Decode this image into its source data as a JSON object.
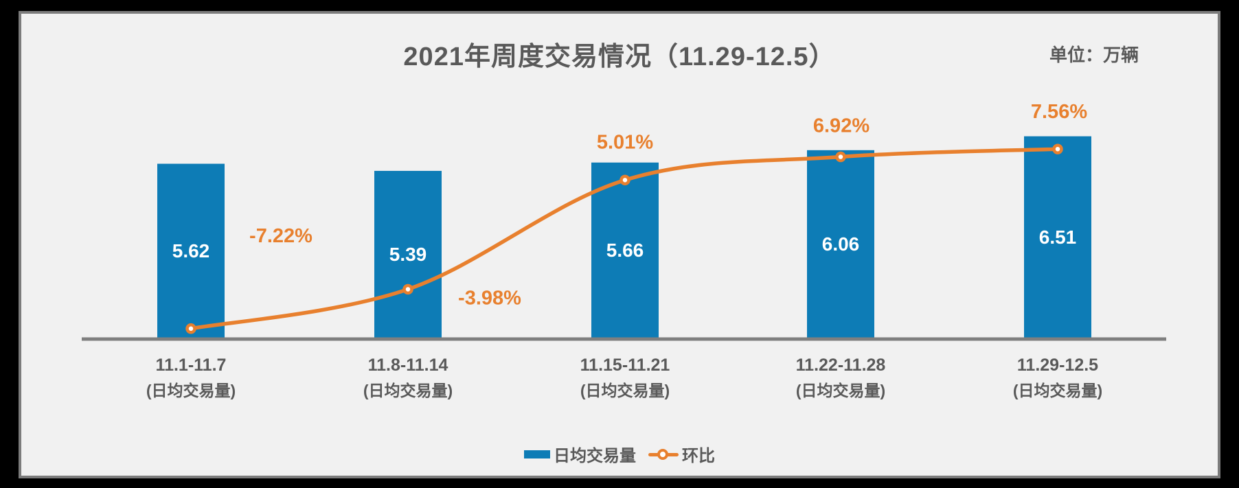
{
  "header": {
    "title": "2021年周度交易情况（11.29-12.5）",
    "unit_label": "单位：万辆"
  },
  "chart_data": {
    "type": "bar+line",
    "title": "2021年周度交易情况（11.29-12.5）",
    "unit": "万辆",
    "categories": [
      "11.1-11.7",
      "11.8-11.14",
      "11.15-11.21",
      "11.22-11.28",
      "11.29-12.5"
    ],
    "category_sublabel": "(日均交易量)",
    "series": [
      {
        "name": "日均交易量",
        "type": "bar",
        "values": [
          5.62,
          5.39,
          5.66,
          6.06,
          6.51
        ],
        "labels": [
          "5.62",
          "5.39",
          "5.66",
          "6.06",
          "6.51"
        ],
        "color": "#0d7cb6",
        "label_color": "#ffffff",
        "label_position": "inside-center"
      },
      {
        "name": "环比",
        "type": "line",
        "values": [
          -7.22,
          -3.98,
          5.01,
          6.92,
          7.56
        ],
        "labels": [
          "-7.22%",
          "-3.98%",
          "5.01%",
          "6.92%",
          "7.56%"
        ],
        "color": "#e8802e",
        "marker": "open-circle",
        "smooth": true
      }
    ],
    "legend_position": "bottom",
    "y_axis_visible": false,
    "gridlines": false,
    "colors": {
      "axis": "#7f7f7f",
      "text": "#595959",
      "panel_background": "#f1f1f1",
      "frame_background": "#000000"
    }
  }
}
